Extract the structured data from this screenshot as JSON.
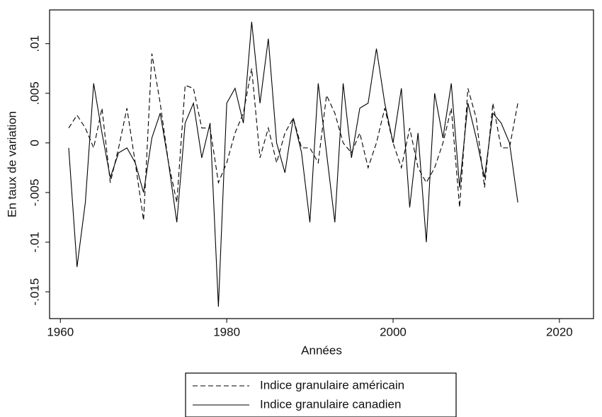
{
  "chart_data": {
    "type": "line",
    "x_label": "Années",
    "y_label": "En taux de variation",
    "x": [
      1961,
      1962,
      1963,
      1964,
      1965,
      1966,
      1967,
      1968,
      1969,
      1970,
      1971,
      1972,
      1973,
      1974,
      1975,
      1976,
      1977,
      1978,
      1979,
      1980,
      1981,
      1982,
      1983,
      1984,
      1985,
      1986,
      1987,
      1988,
      1989,
      1990,
      1991,
      1992,
      1993,
      1994,
      1995,
      1996,
      1997,
      1998,
      1999,
      2000,
      2001,
      2002,
      2003,
      2004,
      2005,
      2006,
      2007,
      2008,
      2009,
      2010,
      2011,
      2012,
      2013,
      2014,
      2015
    ],
    "series": [
      {
        "name": "Indice granulaire américain",
        "color": "#000000",
        "dash": "dashed",
        "values": [
          0.0015,
          0.0028,
          0.0015,
          -0.0005,
          0.0035,
          -0.004,
          -0.0005,
          0.0035,
          -0.002,
          -0.0078,
          0.009,
          0.004,
          -0.002,
          -0.006,
          0.0058,
          0.0055,
          0.0015,
          0.0015,
          -0.004,
          -0.002,
          0.001,
          0.003,
          0.0075,
          -0.0015,
          0.0015,
          -0.002,
          0.001,
          0.0025,
          -0.0005,
          -0.0005,
          -0.002,
          0.0048,
          0.003,
          0,
          -0.001,
          0.001,
          -0.0025,
          0,
          0.0035,
          0,
          -0.0025,
          0.0015,
          -0.0025,
          -0.004,
          -0.0025,
          0,
          0.0035,
          -0.0065,
          0.0055,
          0.0025,
          -0.0045,
          0.004,
          -0.0005,
          -0.0005,
          0.004
        ]
      },
      {
        "name": "Indice granulaire canadien",
        "color": "#000000",
        "dash": "solid",
        "values": [
          -0.0005,
          -0.0125,
          -0.006,
          0.006,
          0.001,
          -0.0035,
          -0.001,
          -0.0005,
          -0.002,
          -0.005,
          0.0005,
          0.003,
          -0.002,
          -0.008,
          0.002,
          0.004,
          -0.0015,
          0.002,
          -0.0165,
          0.004,
          0.0055,
          0.002,
          0.0122,
          0.004,
          0.0105,
          0,
          -0.003,
          0.0025,
          -0.001,
          -0.008,
          0.006,
          -0.001,
          -0.008,
          0.006,
          -0.0015,
          0.0035,
          0.004,
          0.0095,
          0.004,
          0,
          0.0055,
          -0.0065,
          0.001,
          -0.01,
          0.005,
          0.0005,
          0.006,
          -0.0045,
          0.004,
          0.0005,
          -0.0035,
          0.003,
          0.002,
          0,
          -0.006
        ]
      }
    ],
    "xlim": [
      1958.7,
      2024.1
    ],
    "xticks": [
      1960,
      1980,
      2000,
      2020
    ],
    "ylim": [
      -0.0177,
      0.0134
    ],
    "yticks": [
      {
        "value": -0.015,
        "label": "-.015"
      },
      {
        "value": -0.01,
        "label": "-.01"
      },
      {
        "value": -0.005,
        "label": "-.005"
      },
      0,
      {
        "value": 0.005,
        "label": ".005"
      },
      {
        "value": 0.01,
        "label": ".01"
      }
    ],
    "grid": false,
    "legend": "bottom"
  }
}
